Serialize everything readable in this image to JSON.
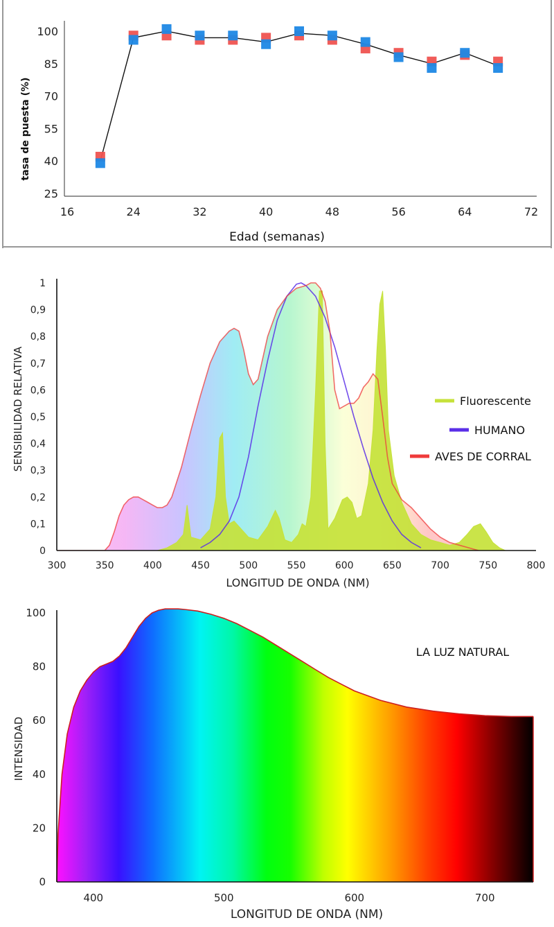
{
  "chart_data": [
    {
      "type": "scatter",
      "title": "",
      "xlabel": "Edad (semanas)",
      "ylabel": "tasa de puesta (%)",
      "xlim": [
        16,
        72
      ],
      "ylim": [
        25,
        100
      ],
      "xticks": [
        "16",
        "24",
        "32",
        "40",
        "48",
        "56",
        "64",
        "72"
      ],
      "yticks": [
        "100",
        "85",
        "70",
        "55",
        "40",
        "25"
      ],
      "grid": false,
      "colors": {
        "series_a": "#ef5350",
        "series_b": "#1e88e5",
        "line": "#111111"
      },
      "line_path": {
        "x": [
          20,
          24,
          28,
          32,
          36,
          40,
          44,
          48,
          52,
          56,
          60,
          64,
          68
        ],
        "y": [
          40,
          97,
          100,
          97,
          97,
          95,
          99,
          98,
          94,
          89,
          85,
          90,
          84
        ]
      },
      "series": [
        {
          "x": [
            20,
            24,
            28,
            32,
            36,
            40,
            44,
            48,
            52,
            56,
            60,
            64,
            68
          ],
          "y": [
            42,
            98,
            98,
            96,
            96,
            97,
            98,
            96,
            92,
            90,
            86,
            89,
            86
          ]
        },
        {
          "x": [
            20,
            24,
            28,
            32,
            36,
            40,
            44,
            48,
            52,
            56,
            60,
            64,
            68
          ],
          "y": [
            39,
            96,
            101,
            98,
            98,
            94,
            100,
            98,
            95,
            88,
            83,
            90,
            83
          ]
        }
      ]
    },
    {
      "type": "area",
      "title": "",
      "xlabel": "LONGITUD DE ONDA (NM)",
      "ylabel": "SENSIBILIDAD RELATIVA",
      "xlim": [
        300,
        800
      ],
      "ylim": [
        0,
        1
      ],
      "xticks": [
        "300",
        "350",
        "400",
        "450",
        "500",
        "550",
        "600",
        "650",
        "700",
        "750",
        "800"
      ],
      "yticks": [
        "1",
        "0,9",
        "0,8",
        "0,7",
        "0,6",
        "0,5",
        "0,4",
        "0,3",
        "0,2",
        "0,1",
        "0"
      ],
      "grid": false,
      "legend_position": "right",
      "series": [
        {
          "name": "Fluorescente",
          "color": "#c6e23a",
          "x": [
            405,
            415,
            425,
            432,
            436,
            440,
            450,
            460,
            466,
            470,
            473,
            476,
            480,
            485,
            490,
            500,
            510,
            520,
            528,
            532,
            538,
            545,
            552,
            556,
            560,
            565,
            570,
            574,
            577,
            580,
            583,
            590,
            598,
            603,
            608,
            613,
            618,
            625,
            630,
            634,
            637,
            640,
            643,
            646,
            652,
            660,
            670,
            680,
            690,
            700,
            710,
            720,
            728,
            735,
            742,
            748,
            755,
            762,
            768
          ],
          "y": [
            0,
            0.01,
            0.03,
            0.06,
            0.17,
            0.05,
            0.04,
            0.08,
            0.2,
            0.42,
            0.44,
            0.2,
            0.1,
            0.11,
            0.09,
            0.05,
            0.04,
            0.09,
            0.15,
            0.12,
            0.04,
            0.03,
            0.06,
            0.1,
            0.09,
            0.2,
            0.6,
            0.97,
            0.97,
            0.4,
            0.08,
            0.12,
            0.19,
            0.2,
            0.18,
            0.12,
            0.13,
            0.25,
            0.45,
            0.75,
            0.92,
            0.97,
            0.75,
            0.45,
            0.28,
            0.18,
            0.1,
            0.06,
            0.04,
            0.03,
            0.02,
            0.03,
            0.06,
            0.09,
            0.1,
            0.07,
            0.03,
            0.01,
            0
          ]
        },
        {
          "name": "HUMANO",
          "color": "#5a2ee8",
          "x": [
            450,
            460,
            470,
            480,
            490,
            500,
            510,
            520,
            530,
            540,
            550,
            555,
            560,
            570,
            580,
            590,
            600,
            610,
            620,
            630,
            640,
            650,
            660,
            670,
            680
          ],
          "y": [
            0.01,
            0.03,
            0.06,
            0.11,
            0.2,
            0.35,
            0.54,
            0.71,
            0.86,
            0.95,
            0.995,
            1.0,
            0.99,
            0.95,
            0.87,
            0.76,
            0.63,
            0.5,
            0.38,
            0.27,
            0.18,
            0.11,
            0.06,
            0.03,
            0.01
          ]
        },
        {
          "name": "AVES DE CORRAL",
          "color": "#ef3b3b",
          "x": [
            300,
            350,
            355,
            360,
            365,
            370,
            375,
            380,
            385,
            390,
            395,
            400,
            405,
            410,
            415,
            420,
            430,
            440,
            450,
            460,
            470,
            480,
            485,
            490,
            495,
            500,
            505,
            510,
            515,
            520,
            530,
            540,
            550,
            560,
            565,
            570,
            575,
            580,
            585,
            590,
            595,
            600,
            605,
            610,
            615,
            620,
            625,
            630,
            635,
            640,
            645,
            650,
            660,
            670,
            680,
            690,
            700,
            710,
            720,
            730,
            740
          ],
          "y": [
            0,
            0,
            0.02,
            0.07,
            0.13,
            0.17,
            0.19,
            0.2,
            0.2,
            0.19,
            0.18,
            0.17,
            0.16,
            0.16,
            0.17,
            0.2,
            0.31,
            0.45,
            0.58,
            0.7,
            0.78,
            0.82,
            0.83,
            0.82,
            0.75,
            0.66,
            0.62,
            0.64,
            0.72,
            0.8,
            0.9,
            0.95,
            0.98,
            0.99,
            1.0,
            1.0,
            0.98,
            0.93,
            0.82,
            0.6,
            0.53,
            0.54,
            0.55,
            0.55,
            0.57,
            0.61,
            0.63,
            0.66,
            0.64,
            0.5,
            0.35,
            0.25,
            0.19,
            0.16,
            0.12,
            0.08,
            0.05,
            0.03,
            0.02,
            0.01,
            0
          ]
        }
      ]
    },
    {
      "type": "area",
      "title": "",
      "xlabel": "LONGITUD DE ONDA (NM)",
      "ylabel": "INTENSIDAD",
      "annotation": "LA LUZ NATURAL",
      "xlim": [
        372,
        737
      ],
      "ylim": [
        0,
        100
      ],
      "xticks": [
        "400",
        "500",
        "600",
        "700"
      ],
      "yticks": [
        "100",
        "80",
        "60",
        "40",
        "20",
        "0"
      ],
      "grid": false,
      "series": [
        {
          "color": "#cc1f1f",
          "x": [
            372,
            373,
            376,
            380,
            385,
            390,
            395,
            400,
            405,
            410,
            415,
            420,
            425,
            430,
            435,
            440,
            445,
            450,
            455,
            460,
            465,
            470,
            480,
            490,
            500,
            510,
            520,
            530,
            540,
            550,
            560,
            570,
            580,
            590,
            600,
            620,
            640,
            660,
            680,
            700,
            720,
            737
          ],
          "y": [
            0,
            18,
            40,
            55,
            65,
            71,
            75,
            78,
            80,
            81,
            82,
            84,
            87,
            91,
            95,
            98,
            100,
            101,
            101.5,
            101.5,
            101.5,
            101.3,
            100.7,
            99.5,
            98,
            96,
            93.5,
            91,
            88,
            85,
            82,
            79,
            76,
            73.5,
            71,
            67.5,
            65,
            63.5,
            62.5,
            61.8,
            61.5,
            61.5
          ]
        }
      ]
    }
  ]
}
